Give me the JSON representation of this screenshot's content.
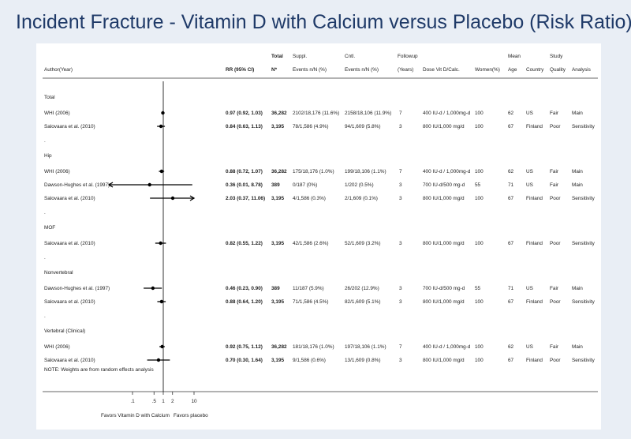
{
  "title": "Incident Fracture - Vitamin D with Calcium versus Placebo (Risk Ratio)",
  "headers": {
    "author": "Author(Year)",
    "rr": "RR (95% CI)",
    "total_top": "Total",
    "total": "N*",
    "suppl_top": "Suppl.",
    "suppl": "Events n/N (%)",
    "cntl_top": "Cntl.",
    "cntl": "Events n/N (%)",
    "followup_top": "Followup",
    "followup": "(Years)",
    "dose": "Dose Vit D/Calc.",
    "women": "Women(%)",
    "age_top": "Mean",
    "age": "Age",
    "country": "Country",
    "quality_top": "Study",
    "quality": "Quality",
    "analysis": "Analysis"
  },
  "note": "NOTE: Weights are from random effects analysis",
  "favors_left": "Favors Vitamin D with Calcium",
  "favors_right": "Favors placebo",
  "dot_label": ".",
  "chart_data": {
    "type": "forest",
    "x_scale": "log",
    "x_ticks": [
      0.1,
      0.5,
      1,
      2,
      10
    ],
    "x_tick_labels": [
      ".1",
      ".5",
      "1",
      "2",
      "10"
    ],
    "reference_line": 1,
    "groups": [
      {
        "name": "Total",
        "studies": [
          {
            "author": "WHI (2006)",
            "rr": 0.97,
            "lo": 0.92,
            "hi": 1.03,
            "rr_text": "0.97 (0.92, 1.03)",
            "n": "36,282",
            "suppl": "2102/18,176 (11.6%)",
            "cntl": "2158/18,106 (11.9%)",
            "followup": "7",
            "dose": "400 IU-d / 1,000mg-d",
            "women": "100",
            "age": "62",
            "country": "US",
            "quality": "Fair",
            "analysis": "Main"
          },
          {
            "author": "Salovaara et al. (2010)",
            "rr": 0.84,
            "lo": 0.63,
            "hi": 1.13,
            "rr_text": "0.84 (0.63, 1.13)",
            "n": "3,195",
            "suppl": "78/1,586 (4.9%)",
            "cntl": "94/1,609 (5.8%)",
            "followup": "3",
            "dose": "800 IU/1,000 mg/d",
            "women": "100",
            "age": "67",
            "country": "Finland",
            "quality": "Poor",
            "analysis": "Sensitivity"
          }
        ]
      },
      {
        "name": "Hip",
        "studies": [
          {
            "author": "WHI (2006)",
            "rr": 0.88,
            "lo": 0.72,
            "hi": 1.07,
            "rr_text": "0.88 (0.72, 1.07)",
            "n": "36,282",
            "suppl": "175/18,176 (1.0%)",
            "cntl": "199/18,106 (1.1%)",
            "followup": "7",
            "dose": "400 IU-d / 1,000mg-d",
            "women": "100",
            "age": "62",
            "country": "US",
            "quality": "Fair",
            "analysis": "Main"
          },
          {
            "author": "Dawson-Hughes et al. (1997)",
            "rr": 0.36,
            "lo": 0.01,
            "hi": 8.78,
            "rr_text": "0.36 (0.01, 8.78)",
            "n": "389",
            "suppl": "0/187 (0%)",
            "cntl": "1/202 (0.5%)",
            "followup": "3",
            "dose": "700 IU-d/500 mg-d",
            "women": "55",
            "age": "71",
            "country": "US",
            "quality": "Fair",
            "analysis": "Main"
          },
          {
            "author": "Salovaara et al. (2010)",
            "rr": 2.03,
            "lo": 0.37,
            "hi": 11.06,
            "rr_text": "2.03 (0.37, 11.06)",
            "n": "3,195",
            "suppl": "4/1,586 (0.3%)",
            "cntl": "2/1,609 (0.1%)",
            "followup": "3",
            "dose": "800 IU/1,000 mg/d",
            "women": "100",
            "age": "67",
            "country": "Finland",
            "quality": "Poor",
            "analysis": "Sensitivity"
          }
        ]
      },
      {
        "name": "MOF",
        "studies": [
          {
            "author": "Salovaara et al. (2010)",
            "rr": 0.82,
            "lo": 0.55,
            "hi": 1.22,
            "rr_text": "0.82 (0.55, 1.22)",
            "n": "3,195",
            "suppl": "42/1,586 (2.6%)",
            "cntl": "52/1,609 (3.2%)",
            "followup": "3",
            "dose": "800 IU/1,000 mg/d",
            "women": "100",
            "age": "67",
            "country": "Finland",
            "quality": "Poor",
            "analysis": "Sensitivity"
          }
        ]
      },
      {
        "name": "Nonvertebral",
        "studies": [
          {
            "author": "Dawson-Hughes et al. (1997)",
            "rr": 0.46,
            "lo": 0.23,
            "hi": 0.9,
            "rr_text": "0.46 (0.23, 0.90)",
            "n": "389",
            "suppl": "11/187 (5.9%)",
            "cntl": "26/202 (12.9%)",
            "followup": "3",
            "dose": "700 IU-d/500 mg-d",
            "women": "55",
            "age": "71",
            "country": "US",
            "quality": "Fair",
            "analysis": "Main"
          },
          {
            "author": "Salovaara et al. (2010)",
            "rr": 0.88,
            "lo": 0.64,
            "hi": 1.2,
            "rr_text": "0.88 (0.64, 1.20)",
            "n": "3,195",
            "suppl": "71/1,586 (4.5%)",
            "cntl": "82/1,609 (5.1%)",
            "followup": "3",
            "dose": "800 IU/1,000 mg/d",
            "women": "100",
            "age": "67",
            "country": "Finland",
            "quality": "Poor",
            "analysis": "Sensitivity"
          }
        ]
      },
      {
        "name": "Vertebral (Clinical)",
        "studies": [
          {
            "author": "WHI (2006)",
            "rr": 0.92,
            "lo": 0.75,
            "hi": 1.12,
            "rr_text": "0.92 (0.75, 1.12)",
            "n": "36,282",
            "suppl": "181/18,176 (1.0%)",
            "cntl": "197/18,106 (1.1%)",
            "followup": "7",
            "dose": "400 IU-d / 1,000mg-d",
            "women": "100",
            "age": "62",
            "country": "US",
            "quality": "Fair",
            "analysis": "Main"
          },
          {
            "author": "Salovaara et al. (2010)",
            "rr": 0.7,
            "lo": 0.3,
            "hi": 1.64,
            "rr_text": "0.70 (0.30, 1.64)",
            "n": "3,195",
            "suppl": "9/1,586 (0.6%)",
            "cntl": "13/1,609 (0.8%)",
            "followup": "3",
            "dose": "800 IU/1,000 mg/d",
            "women": "100",
            "age": "67",
            "country": "Finland",
            "quality": "Poor",
            "analysis": "Sensitivity"
          }
        ]
      }
    ]
  }
}
